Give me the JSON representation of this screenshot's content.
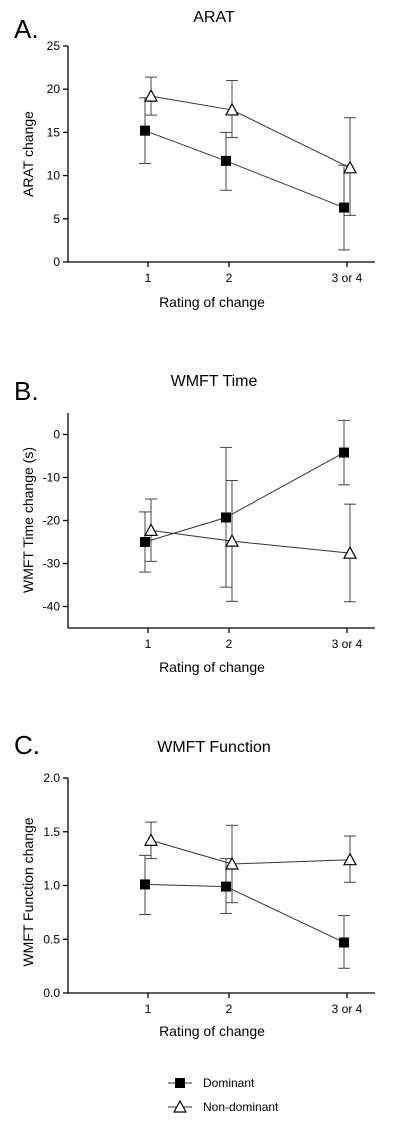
{
  "legend": [
    {
      "label": "Dominant",
      "marker": "square-filled"
    },
    {
      "label": "Non-dominant",
      "marker": "triangle-open"
    }
  ],
  "chart_data": [
    {
      "type": "line",
      "panel": "A.",
      "title": "ARAT",
      "xlabel": "Rating of change",
      "ylabel": "ARAT change",
      "categories": [
        "1",
        "2",
        "3 or 4"
      ],
      "ylim": [
        0,
        25
      ],
      "yticks": [
        0,
        5,
        10,
        15,
        20,
        25
      ],
      "ytick_labels": [
        "0",
        "5",
        "10",
        "15",
        "20",
        "25"
      ],
      "grid": false,
      "legend_position": "bottom",
      "series": [
        {
          "name": "Dominant",
          "marker": "square-filled",
          "values": [
            15.2,
            11.7,
            6.3
          ],
          "err_low": [
            11.4,
            8.3,
            1.4
          ],
          "err_high": [
            19.0,
            15.0,
            11.2
          ]
        },
        {
          "name": "Non-dominant",
          "marker": "triangle-open",
          "values": [
            19.2,
            17.6,
            10.9
          ],
          "err_low": [
            17.0,
            14.4,
            5.4
          ],
          "err_high": [
            21.4,
            21.0,
            16.7
          ]
        }
      ]
    },
    {
      "type": "line",
      "panel": "B.",
      "title": "WMFT Time",
      "xlabel": "Rating of change",
      "ylabel": "WMFT Time change (s)",
      "categories": [
        "1",
        "2",
        "3 or 4"
      ],
      "ylim": [
        -45,
        5
      ],
      "yticks": [
        -40,
        -30,
        -20,
        -10,
        0
      ],
      "ytick_labels": [
        "-40",
        "-30",
        "-20",
        "-10",
        "0"
      ],
      "grid": false,
      "legend_position": "bottom",
      "series": [
        {
          "name": "Dominant",
          "marker": "square-filled",
          "values": [
            -25.0,
            -19.3,
            -4.2
          ],
          "err_low": [
            -32.0,
            -35.5,
            -11.7
          ],
          "err_high": [
            -18.0,
            -3.0,
            3.3
          ]
        },
        {
          "name": "Non-dominant",
          "marker": "triangle-open",
          "values": [
            -22.3,
            -24.8,
            -27.6
          ],
          "err_low": [
            -29.5,
            -38.8,
            -38.9
          ],
          "err_high": [
            -15.0,
            -10.7,
            -16.2
          ]
        }
      ]
    },
    {
      "type": "line",
      "panel": "C.",
      "title": "WMFT Function",
      "xlabel": "Rating of change",
      "ylabel": "WMFT Function change",
      "categories": [
        "1",
        "2",
        "3 or 4"
      ],
      "ylim": [
        0,
        2.0
      ],
      "yticks": [
        0,
        0.5,
        1.0,
        1.5,
        2.0
      ],
      "ytick_labels": [
        "0.0",
        "0.5",
        "1.0",
        "1.5",
        "2.0"
      ],
      "grid": false,
      "legend_position": "bottom",
      "series": [
        {
          "name": "Dominant",
          "marker": "square-filled",
          "values": [
            1.01,
            0.99,
            0.47
          ],
          "err_low": [
            0.73,
            0.74,
            0.23
          ],
          "err_high": [
            1.28,
            1.25,
            0.72
          ]
        },
        {
          "name": "Non-dominant",
          "marker": "triangle-open",
          "values": [
            1.42,
            1.2,
            1.24
          ],
          "err_low": [
            1.25,
            0.84,
            1.03
          ],
          "err_high": [
            1.59,
            1.56,
            1.46
          ]
        }
      ]
    }
  ]
}
